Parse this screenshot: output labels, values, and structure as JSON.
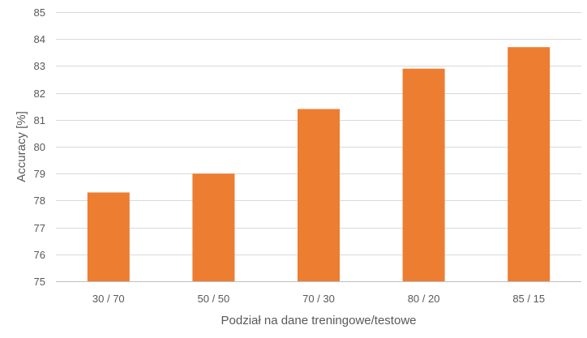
{
  "chart_data": {
    "type": "bar",
    "title": "",
    "xlabel": "Podział na dane treningowe/testowe",
    "ylabel": "Accuracy [%]",
    "categories": [
      "30 / 70",
      "50 / 50",
      "70 / 30",
      "80 / 20",
      "85 / 15"
    ],
    "values": [
      78.3,
      79.0,
      81.4,
      82.9,
      83.7
    ],
    "ylim": [
      75,
      85
    ],
    "yticks": [
      75,
      76,
      77,
      78,
      79,
      80,
      81,
      82,
      83,
      84,
      85
    ],
    "grid": true,
    "legend": "none",
    "colors": {
      "bar": "#ed7d31",
      "grid": "#d9d9d9",
      "axis": "#bfbfbf",
      "text": "#595959"
    }
  }
}
